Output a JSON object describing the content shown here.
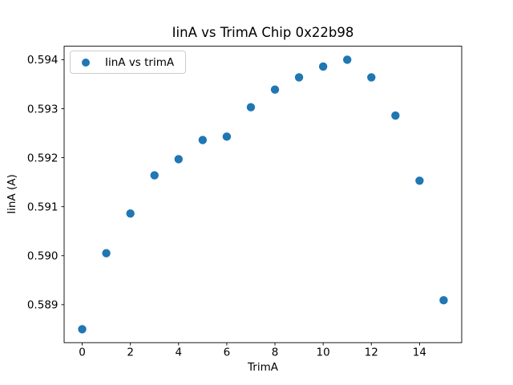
{
  "chart_data": {
    "type": "scatter",
    "title": "IinA vs TrimA Chip 0x22b98",
    "xlabel": "TrimA",
    "ylabel": "IinA (A)",
    "legend_location": "upper left",
    "grid": false,
    "background": "#ffffff",
    "axes_color": "#000000",
    "series": [
      {
        "name": "IinA vs trimA",
        "color": "#1f77b4",
        "x": [
          0,
          1,
          2,
          3,
          4,
          5,
          6,
          7,
          8,
          9,
          10,
          11,
          12,
          13,
          14,
          15
        ],
        "y": [
          0.5885,
          0.59005,
          0.59086,
          0.59164,
          0.59197,
          0.59236,
          0.59243,
          0.59303,
          0.59339,
          0.59364,
          0.59386,
          0.594,
          0.59364,
          0.59286,
          0.59153,
          0.58909
        ]
      }
    ],
    "xlim": [
      -0.75,
      15.75
    ],
    "ylim": [
      0.588225,
      0.594275
    ],
    "xticks": [
      0,
      2,
      4,
      6,
      8,
      10,
      12,
      14
    ],
    "yticks": [
      0.589,
      0.59,
      0.591,
      0.592,
      0.593,
      0.594
    ],
    "ytick_decimals": 3
  }
}
